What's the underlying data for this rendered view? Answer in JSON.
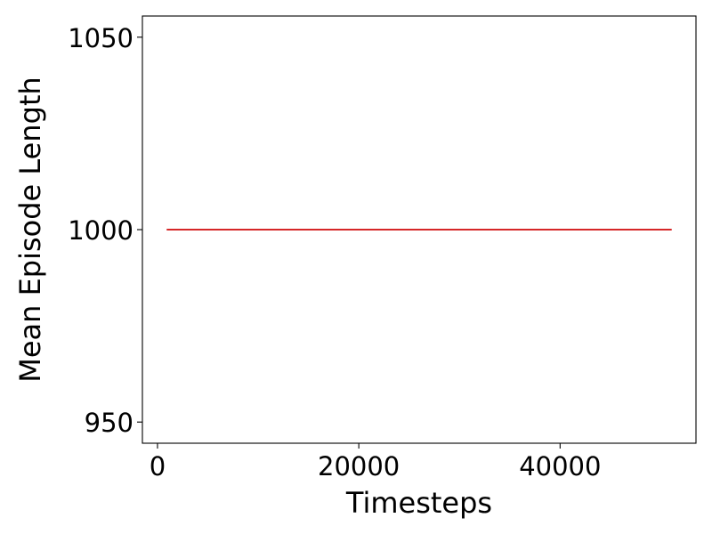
{
  "chart_data": {
    "type": "line",
    "title": "",
    "xlabel": "Timesteps",
    "ylabel": "Mean Episode Length",
    "xlim": [
      -1500,
      53500
    ],
    "ylim": [
      944.5,
      1055.5
    ],
    "xticks": [
      0,
      20000,
      40000
    ],
    "xtick_labels": [
      "0",
      "20000",
      "40000"
    ],
    "yticks": [
      950,
      1000,
      1050
    ],
    "ytick_labels": [
      "950",
      "1000",
      "1050"
    ],
    "grid": false,
    "legend": "none",
    "series": [
      {
        "color": "#d62728",
        "x": [
          1000,
          51000
        ],
        "y": [
          1000,
          1000
        ]
      }
    ]
  }
}
